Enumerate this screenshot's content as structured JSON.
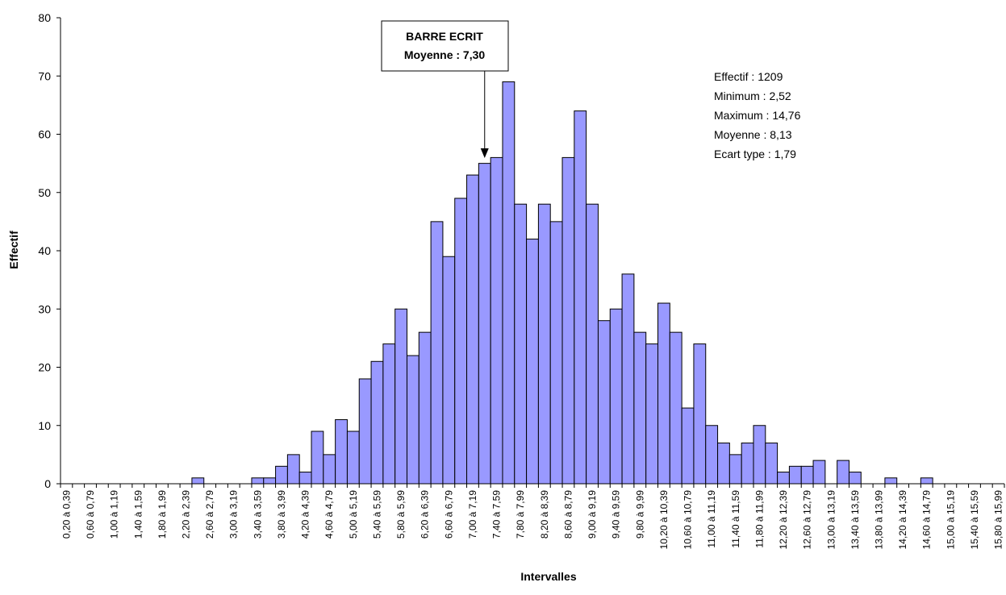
{
  "chart_data": {
    "type": "bar",
    "x_label": "Intervalles",
    "y_label": "Effectif",
    "categories": [
      "0,20 à 0,39",
      null,
      "0,60 à 0,79",
      null,
      "1,00 à 1,19",
      null,
      "1,40 à 1,59",
      null,
      "1,80 à 1,99",
      null,
      "2,20 à 2,39",
      null,
      "2,60 à 2,79",
      null,
      "3,00 à 3,19",
      null,
      "3,40 à 3,59",
      null,
      "3,80 à 3,99",
      null,
      "4,20 à 4,39",
      null,
      "4,60 à 4,79",
      null,
      "5,00 à 5,19",
      null,
      "5,40 à 5,59",
      null,
      "5,80 à 5,99",
      null,
      "6,20 à 6,39",
      null,
      "6,60 à 6,79",
      null,
      "7,00 à 7,19",
      null,
      "7,40 à 7,59",
      null,
      "7,80 à 7,99",
      null,
      "8,20 à 8,39",
      null,
      "8,60 à 8,79",
      null,
      "9,00 à 9,19",
      null,
      "9,40 à 9,59",
      null,
      "9,80 à 9,99",
      null,
      "10,20 à 10,39",
      null,
      "10,60 à 10,79",
      null,
      "11,00 à 11,19",
      null,
      "11,40 à 11,59",
      null,
      "11,80 à 11,99",
      null,
      "12,20 à 12,39",
      null,
      "12,60 à 12,79",
      null,
      "13,00 à 13,19",
      null,
      "13,40 à 13,59",
      null,
      "13,80 à 13,99",
      null,
      "14,20 à 14,39",
      null,
      "14,60 à 14,79",
      null,
      "15,00 à 15,19",
      null,
      "15,40 à 15,59",
      null,
      "15,80 à 15,99"
    ],
    "values": [
      0,
      0,
      0,
      0,
      0,
      0,
      0,
      0,
      0,
      0,
      0,
      1,
      0,
      0,
      0,
      0,
      1,
      1,
      3,
      5,
      2,
      9,
      5,
      11,
      9,
      18,
      21,
      24,
      30,
      22,
      26,
      45,
      39,
      49,
      53,
      55,
      56,
      69,
      48,
      42,
      48,
      45,
      56,
      64,
      48,
      28,
      30,
      36,
      26,
      24,
      31,
      26,
      13,
      24,
      10,
      7,
      5,
      7,
      10,
      7,
      2,
      3,
      3,
      4,
      0,
      4,
      2,
      0,
      0,
      1,
      0,
      0,
      1,
      0,
      0,
      0,
      0,
      0,
      0
    ],
    "color": "#9999ff",
    "ylim": [
      0,
      80
    ],
    "yticks": [
      0,
      10,
      20,
      30,
      40,
      50,
      60,
      70,
      80
    ],
    "grid": false,
    "callout": [
      "BARRE ECRIT",
      "Moyenne : 7,30"
    ],
    "stats": [
      "Effectif : 1209",
      "Minimum : 2,52",
      "Maximum : 14,76",
      "Moyenne : 8,13",
      "Ecart type : 1,79"
    ]
  }
}
